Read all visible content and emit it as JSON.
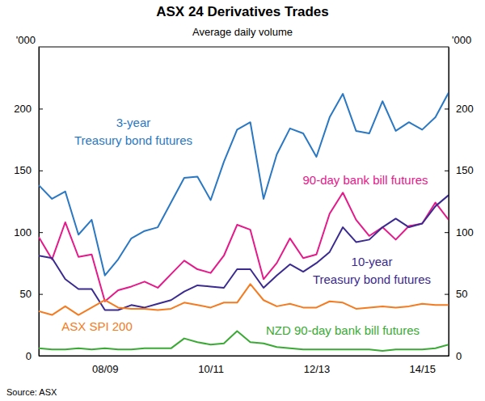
{
  "chart_data": {
    "type": "line",
    "title": "ASX 24 Derivatives Trades",
    "subtitle": "Average daily volume",
    "ylabel": "'000",
    "source": "Source: ASX",
    "categories": [
      null,
      null,
      null,
      null,
      null,
      "08/09",
      null,
      null,
      null,
      null,
      null,
      null,
      null,
      "10/11",
      null,
      null,
      null,
      null,
      null,
      null,
      null,
      "12/13",
      null,
      null,
      null,
      null,
      null,
      null,
      null,
      "14/15",
      null,
      null
    ],
    "ylim": [
      0,
      250
    ],
    "yticks": [
      0,
      50,
      100,
      150,
      200
    ],
    "grid": false,
    "series": [
      {
        "name": "3-year\nTreasury bond futures",
        "color": "#2a78c3",
        "values": [
          138,
          127,
          133,
          98,
          110,
          65,
          78,
          95,
          101,
          104,
          124,
          144,
          145,
          126,
          157,
          183,
          189,
          127,
          163,
          184,
          180,
          161,
          193,
          212,
          182,
          180,
          206,
          182,
          189,
          183,
          193,
          213
        ]
      },
      {
        "name": "90-day bank bill futures",
        "color": "#e5198a",
        "values": [
          96,
          78,
          108,
          80,
          82,
          44,
          53,
          56,
          60,
          55,
          66,
          77,
          70,
          67,
          81,
          106,
          102,
          62,
          75,
          95,
          79,
          82,
          115,
          132,
          110,
          97,
          104,
          94,
          105,
          107,
          124,
          110
        ]
      },
      {
        "name": "10-year\nTreasury bond futures",
        "color": "#3b2a8f",
        "values": [
          81,
          79,
          62,
          54,
          54,
          37,
          37,
          41,
          39,
          42,
          45,
          52,
          57,
          56,
          55,
          70,
          70,
          55,
          65,
          74,
          68,
          75,
          84,
          104,
          92,
          94,
          104,
          111,
          104,
          107,
          121,
          130
        ]
      },
      {
        "name": "ASX SPI 200",
        "color": "#f47b20",
        "values": [
          36,
          33,
          40,
          33,
          39,
          45,
          39,
          38,
          38,
          37,
          38,
          43,
          41,
          39,
          43,
          43,
          58,
          45,
          40,
          42,
          39,
          39,
          44,
          43,
          38,
          39,
          40,
          39,
          40,
          42,
          41,
          41
        ]
      },
      {
        "name": "NZD 90-day bank bill futures",
        "color": "#3aaa35",
        "values": [
          6,
          5,
          5,
          6,
          5,
          6,
          5,
          5,
          6,
          6,
          6,
          14,
          11,
          9,
          10,
          20,
          11,
          10,
          7,
          6,
          5,
          5,
          5,
          5,
          5,
          5,
          4,
          5,
          5,
          5,
          6,
          9
        ]
      }
    ]
  }
}
